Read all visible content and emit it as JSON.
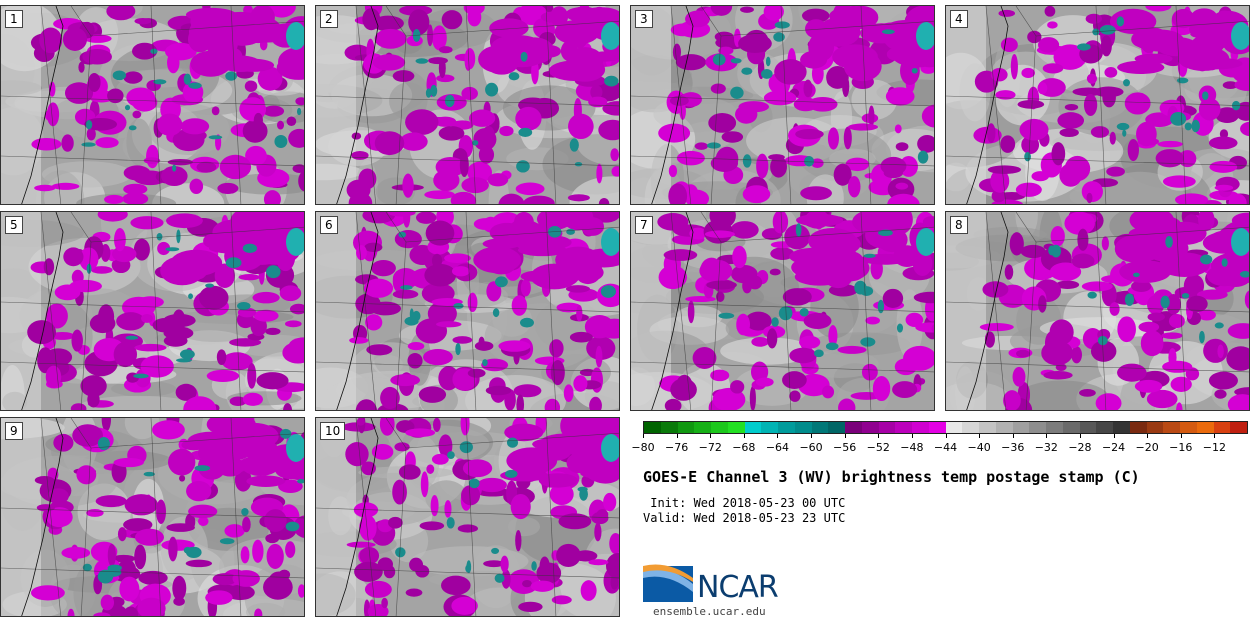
{
  "stamps": [
    {
      "label": "1"
    },
    {
      "label": "2"
    },
    {
      "label": "3"
    },
    {
      "label": "4"
    },
    {
      "label": "5"
    },
    {
      "label": "6"
    },
    {
      "label": "7"
    },
    {
      "label": "8"
    },
    {
      "label": "9"
    },
    {
      "label": "10"
    }
  ],
  "colorbar": {
    "colors": [
      "#006400",
      "#0a7a0a",
      "#109810",
      "#16b016",
      "#1cc81c",
      "#22e022",
      "#00cccc",
      "#00b4b4",
      "#009c9c",
      "#008c8c",
      "#007878",
      "#006666",
      "#7a007a",
      "#900090",
      "#a600a6",
      "#bc00bc",
      "#d000d0",
      "#e400e4",
      "#e8e8e8",
      "#d6d6d6",
      "#c4c4c4",
      "#b2b2b2",
      "#a0a0a0",
      "#8e8e8e",
      "#7c7c7c",
      "#6a6a6a",
      "#585858",
      "#464646",
      "#343434",
      "#7a2a10",
      "#9a3a12",
      "#ba4a14",
      "#d45a10",
      "#ea6a0c",
      "#d84010",
      "#c02010"
    ],
    "tick_labels": [
      "−80",
      "−76",
      "−72",
      "−68",
      "−64",
      "−60",
      "−56",
      "−52",
      "−48",
      "−44",
      "−40",
      "−36",
      "−32",
      "−28",
      "−24",
      "−20",
      "−16",
      "−12"
    ]
  },
  "title": "GOES-E Channel 3 (WV) brightness temp postage stamp (C)",
  "init": " Init: Wed 2018-05-23 00 UTC",
  "valid": "Valid: Wed 2018-05-23 23 UTC",
  "logo": {
    "text": "NCAR",
    "colors": {
      "blue": "#0b5aa5",
      "light": "#7fb3e6",
      "orange": "#f29c33"
    }
  },
  "site": "ensemble.ucar.edu"
}
